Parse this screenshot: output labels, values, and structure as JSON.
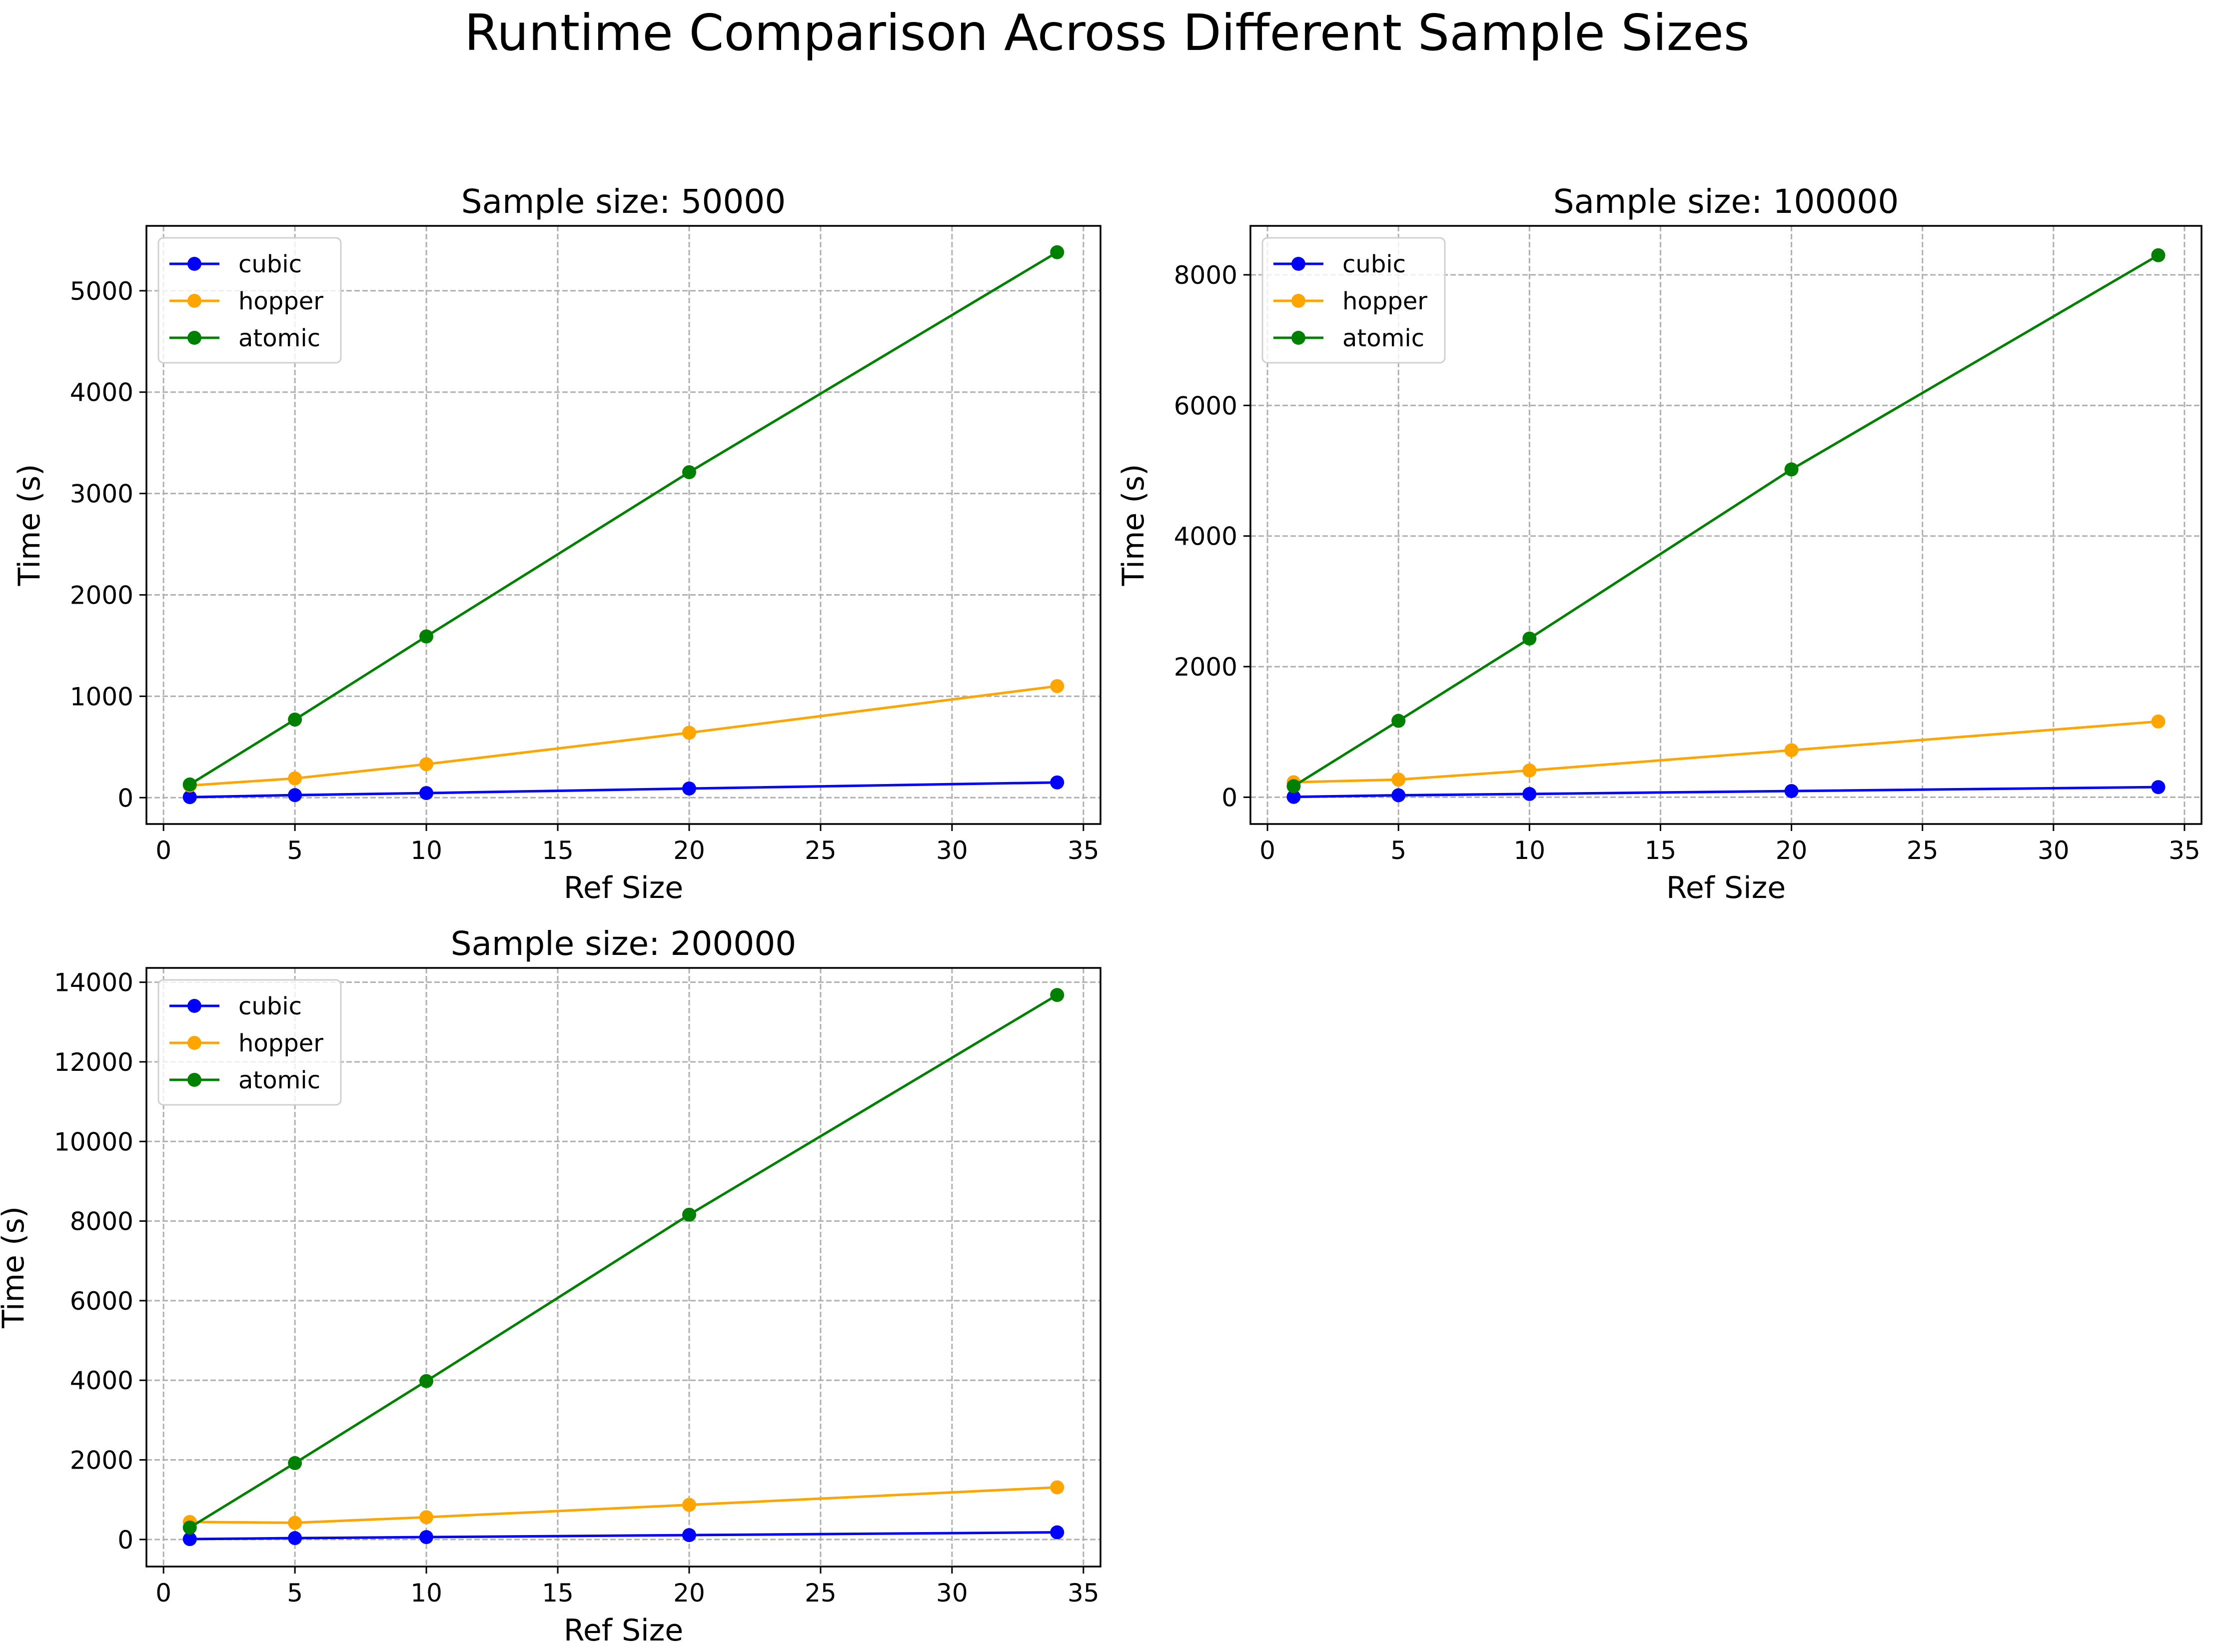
{
  "figure": {
    "title": "Runtime Comparison Across Different Sample Sizes"
  },
  "colors": {
    "cubic": "#0000ff",
    "hopper": "#ffa500",
    "atomic": "#008000"
  },
  "chart_data": [
    {
      "type": "line",
      "title": "Sample size: 50000",
      "xlabel": "Ref Size",
      "ylabel": "Time (s)",
      "xlim": [
        -0.65,
        35.65
      ],
      "ylim": [
        -260,
        5640
      ],
      "xticks": [
        0,
        5,
        10,
        15,
        20,
        25,
        30,
        35
      ],
      "yticks": [
        0,
        1000,
        2000,
        3000,
        4000,
        5000
      ],
      "grid": true,
      "legend_position": "top-left",
      "x": [
        1,
        5,
        10,
        20,
        34
      ],
      "series": [
        {
          "name": "cubic",
          "color": "#0000ff",
          "values": [
            5,
            25,
            45,
            90,
            150
          ]
        },
        {
          "name": "hopper",
          "color": "#ffa500",
          "values": [
            120,
            190,
            330,
            640,
            1100
          ]
        },
        {
          "name": "atomic",
          "color": "#008000",
          "values": [
            130,
            770,
            1590,
            3210,
            5380
          ]
        }
      ]
    },
    {
      "type": "line",
      "title": "Sample size: 100000",
      "xlabel": "Ref Size",
      "ylabel": "Time (s)",
      "xlim": [
        -0.65,
        35.65
      ],
      "ylim": [
        -410,
        8750
      ],
      "xticks": [
        0,
        5,
        10,
        15,
        20,
        25,
        30,
        35
      ],
      "yticks": [
        0,
        2000,
        4000,
        6000,
        8000
      ],
      "grid": true,
      "legend_position": "top-left",
      "x": [
        1,
        5,
        10,
        20,
        34
      ],
      "series": [
        {
          "name": "cubic",
          "color": "#0000ff",
          "values": [
            5,
            30,
            50,
            95,
            155
          ]
        },
        {
          "name": "hopper",
          "color": "#ffa500",
          "values": [
            230,
            270,
            410,
            720,
            1160
          ]
        },
        {
          "name": "atomic",
          "color": "#008000",
          "values": [
            170,
            1170,
            2430,
            5020,
            8300
          ]
        }
      ]
    },
    {
      "type": "line",
      "title": "Sample size: 200000",
      "xlabel": "Ref Size",
      "ylabel": "Time (s)",
      "xlim": [
        -0.65,
        35.65
      ],
      "ylim": [
        -680,
        14360
      ],
      "xticks": [
        0,
        5,
        10,
        15,
        20,
        25,
        30,
        35
      ],
      "yticks": [
        0,
        2000,
        4000,
        6000,
        8000,
        10000,
        12000,
        14000
      ],
      "grid": true,
      "legend_position": "top-left",
      "x": [
        1,
        5,
        10,
        20,
        34
      ],
      "series": [
        {
          "name": "cubic",
          "color": "#0000ff",
          "values": [
            10,
            35,
            60,
            110,
            180
          ]
        },
        {
          "name": "hopper",
          "color": "#ffa500",
          "values": [
            440,
            420,
            560,
            870,
            1310
          ]
        },
        {
          "name": "atomic",
          "color": "#008000",
          "values": [
            300,
            1920,
            3980,
            8160,
            13680
          ]
        }
      ]
    }
  ]
}
